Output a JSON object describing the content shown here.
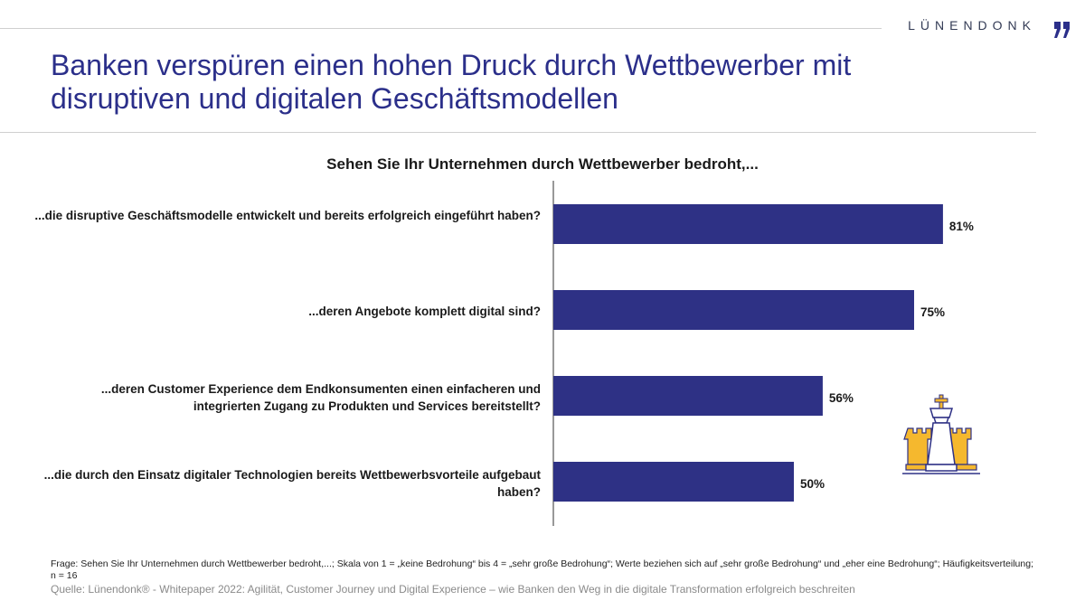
{
  "brand": {
    "name": "LÜNENDONK",
    "mark": "„"
  },
  "title": "Banken verspüren einen hohen Druck durch Wettbewerber mit disruptiven und digitalen Geschäftsmodellen",
  "chart_data": {
    "type": "bar",
    "orientation": "horizontal",
    "title": "Sehen Sie Ihr Unternehmen durch Wettbewerber bedroht,...",
    "categories": [
      "...die disruptive Geschäftsmodelle entwickelt und bereits erfolgreich eingeführt haben?",
      "...deren Angebote komplett digital sind?",
      "...deren Customer Experience dem Endkonsumenten einen einfacheren und integrierten Zugang zu Produkten und Services bereitstellt?",
      "...die durch den Einsatz digitaler Technologien bereits Wettbewerbsvorteile aufgebaut haben?"
    ],
    "values": [
      81,
      75,
      56,
      50
    ],
    "value_labels": [
      "81%",
      "75%",
      "56%",
      "50%"
    ],
    "unit": "%",
    "xlim": [
      0,
      100
    ],
    "bar_color": "#2e3185",
    "grid": false
  },
  "footnote": "Frage: Sehen Sie Ihr Unternehmen durch Wettbewerber bedroht,...; Skala von 1 = „keine Bedrohung“ bis 4 = „sehr große Bedrohung“; Werte beziehen sich auf „sehr große Bedrohung“ und „eher eine Bedrohung“; Häufigkeitsverteilung; n = 16",
  "source": "Quelle: Lünendonk® - Whitepaper 2022: Agilität, Customer Journey und Digital Experience – wie Banken den Weg in die digitale Transformation erfolgreich beschreiten"
}
